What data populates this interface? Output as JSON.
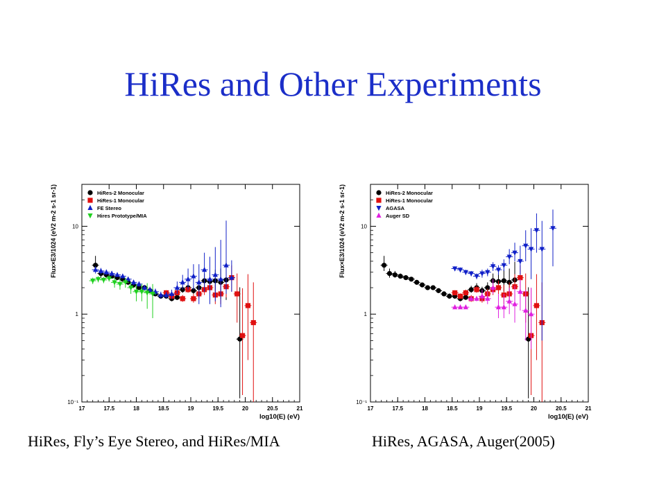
{
  "slide": {
    "title": "HiRes and Other Experiments",
    "caption_left": "HiRes, Fly’s Eye Stereo, and HiRes/MIA",
    "caption_right": "HiRes, AGASA, Auger(2005)"
  },
  "colors": {
    "title": "#1b2ec8",
    "hires2": "#000000",
    "hires1": "#e01010",
    "fe_stereo": "#1020c8",
    "mia": "#20d020",
    "agasa": "#1020c8",
    "auger": "#e020e0"
  },
  "chart_data": [
    {
      "type": "scatter",
      "title": "",
      "xlabel": "log10(E) (eV)",
      "ylabel": "Flux×E3/1024 (eV2 m-2 s-1 sr-1)",
      "x_ticks": [
        "17",
        "17.5",
        "18",
        "18.5",
        "19",
        "19.5",
        "20",
        "20.5",
        "21"
      ],
      "xlim": [
        17,
        21
      ],
      "ylim": [
        0.1,
        30
      ],
      "y_scale": "log",
      "y_ticks": [
        "10⁻¹",
        "1",
        "10"
      ],
      "legend_position": "top-left",
      "series": [
        {
          "name": "HiRes-2 Monocular",
          "marker": "circle",
          "color": "#000000",
          "x": [
            17.25,
            17.35,
            17.45,
            17.55,
            17.65,
            17.75,
            17.85,
            17.95,
            18.05,
            18.15,
            18.25,
            18.35,
            18.45,
            18.55,
            18.65,
            18.75,
            18.85,
            18.95,
            19.05,
            19.15,
            19.25,
            19.35,
            19.45,
            19.55,
            19.65,
            19.9
          ],
          "y": [
            3.6,
            2.9,
            2.8,
            2.7,
            2.6,
            2.5,
            2.3,
            2.15,
            2.0,
            2.0,
            1.85,
            1.7,
            1.6,
            1.6,
            1.5,
            1.55,
            1.9,
            2.0,
            1.85,
            2.0,
            2.4,
            2.35,
            2.4,
            2.3,
            2.45,
            0.52
          ],
          "err_lo": [
            0.5,
            0.3,
            0.2,
            0.15,
            0.12,
            0.1,
            0.1,
            0.1,
            0.1,
            0.1,
            0.1,
            0.1,
            0.1,
            0.1,
            0.1,
            0.1,
            0.15,
            0.2,
            0.15,
            0.25,
            0.4,
            0.5,
            0.6,
            0.8,
            1.0,
            0.41
          ],
          "err_hi": [
            1.0,
            0.4,
            0.3,
            0.2,
            0.15,
            0.12,
            0.12,
            0.12,
            0.12,
            0.12,
            0.12,
            0.12,
            0.12,
            0.12,
            0.12,
            0.12,
            0.2,
            0.25,
            0.2,
            0.3,
            0.5,
            0.6,
            0.8,
            1.0,
            1.5,
            1.5
          ]
        },
        {
          "name": "HiRes-1 Monocular",
          "marker": "square",
          "color": "#e01010",
          "x": [
            18.55,
            18.65,
            18.75,
            18.85,
            18.95,
            19.05,
            19.15,
            19.25,
            19.35,
            19.45,
            19.55,
            19.65,
            19.75,
            19.85,
            19.95,
            20.05,
            20.15
          ],
          "y": [
            1.75,
            1.6,
            1.75,
            1.5,
            1.9,
            1.5,
            1.7,
            1.9,
            2.0,
            1.65,
            1.7,
            2.05,
            2.6,
            1.7,
            0.57,
            1.25,
            0.8
          ],
          "err_lo": [
            0.1,
            0.1,
            0.12,
            0.12,
            0.15,
            0.15,
            0.2,
            0.25,
            0.3,
            0.35,
            0.4,
            0.5,
            0.8,
            0.9,
            0.45,
            0.95,
            0.72
          ],
          "err_hi": [
            0.12,
            0.12,
            0.15,
            0.15,
            0.2,
            0.2,
            0.25,
            0.3,
            0.4,
            0.5,
            0.6,
            0.8,
            1.0,
            1.2,
            1.4,
            1.6,
            1.5
          ]
        },
        {
          "name": "FE Stereo",
          "marker": "triangle-up",
          "color": "#1020c8",
          "x": [
            17.25,
            17.35,
            17.45,
            17.55,
            17.65,
            17.75,
            17.85,
            17.95,
            18.05,
            18.15,
            18.25,
            18.35,
            18.45,
            18.55,
            18.65,
            18.75,
            18.85,
            18.95,
            19.05,
            19.15,
            19.25,
            19.35,
            19.45,
            19.55,
            19.65,
            19.75
          ],
          "y": [
            3.2,
            3.1,
            3.0,
            2.9,
            2.8,
            2.7,
            2.5,
            2.3,
            2.2,
            2.0,
            1.9,
            1.8,
            1.65,
            1.65,
            1.7,
            2.0,
            2.3,
            2.5,
            2.7,
            2.3,
            3.2,
            2.5,
            2.8,
            2.5,
            3.6,
            2.6
          ],
          "err_lo": [
            0.3,
            0.25,
            0.2,
            0.2,
            0.15,
            0.15,
            0.15,
            0.15,
            0.15,
            0.15,
            0.15,
            0.15,
            0.15,
            0.15,
            0.2,
            0.3,
            0.4,
            0.6,
            0.8,
            1.0,
            1.4,
            1.2,
            1.4,
            1.3,
            1.9,
            0.8
          ],
          "err_hi": [
            0.3,
            0.25,
            0.2,
            0.2,
            0.15,
            0.15,
            0.15,
            0.15,
            0.15,
            0.15,
            0.15,
            0.15,
            0.15,
            0.15,
            0.2,
            0.35,
            0.5,
            0.8,
            1.0,
            1.4,
            1.8,
            2.0,
            3.0,
            4.5,
            8.0,
            1.5
          ]
        },
        {
          "name": "Hires Prototype/MIA",
          "marker": "triangle-down",
          "color": "#20d020",
          "x": [
            17.2,
            17.3,
            17.4,
            17.5,
            17.6,
            17.7,
            17.8,
            17.9,
            18.0,
            18.1,
            18.2,
            18.3
          ],
          "y": [
            2.4,
            2.5,
            2.45,
            2.55,
            2.3,
            2.2,
            2.3,
            2.0,
            1.8,
            1.8,
            1.75,
            1.7
          ],
          "err_lo": [
            0.2,
            0.2,
            0.2,
            0.2,
            0.3,
            0.3,
            0.3,
            0.3,
            0.4,
            0.4,
            0.6,
            0.8
          ],
          "err_hi": [
            0.2,
            0.2,
            0.2,
            0.2,
            0.3,
            0.3,
            0.3,
            0.3,
            0.4,
            0.4,
            0.5,
            0.5
          ]
        }
      ]
    },
    {
      "type": "scatter",
      "title": "",
      "xlabel": "log10(E) (eV)",
      "ylabel": "Flux×E3/1024 (eV2 m-2 s-1 sr-1)",
      "x_ticks": [
        "17",
        "17.5",
        "18",
        "18.5",
        "19",
        "19.5",
        "20",
        "20.5",
        "21"
      ],
      "xlim": [
        17,
        21
      ],
      "ylim": [
        0.1,
        30
      ],
      "y_scale": "log",
      "y_ticks": [
        "10⁻¹",
        "1",
        "10"
      ],
      "legend_position": "top-left",
      "series": [
        {
          "name": "HiRes-2 Monocular",
          "marker": "circle",
          "color": "#000000",
          "x": [
            17.25,
            17.35,
            17.45,
            17.55,
            17.65,
            17.75,
            17.85,
            17.95,
            18.05,
            18.15,
            18.25,
            18.35,
            18.45,
            18.55,
            18.65,
            18.75,
            18.85,
            18.95,
            19.05,
            19.15,
            19.25,
            19.35,
            19.45,
            19.55,
            19.65,
            19.9
          ],
          "y": [
            3.6,
            2.9,
            2.8,
            2.7,
            2.6,
            2.5,
            2.3,
            2.15,
            2.0,
            2.0,
            1.85,
            1.7,
            1.6,
            1.6,
            1.5,
            1.55,
            1.9,
            2.0,
            1.85,
            2.0,
            2.4,
            2.35,
            2.4,
            2.3,
            2.45,
            0.52
          ],
          "err_lo": [
            0.5,
            0.3,
            0.2,
            0.15,
            0.12,
            0.1,
            0.1,
            0.1,
            0.1,
            0.1,
            0.1,
            0.1,
            0.1,
            0.1,
            0.1,
            0.1,
            0.15,
            0.2,
            0.15,
            0.25,
            0.4,
            0.5,
            0.6,
            0.8,
            1.0,
            0.41
          ],
          "err_hi": [
            1.0,
            0.4,
            0.3,
            0.2,
            0.15,
            0.12,
            0.12,
            0.12,
            0.12,
            0.12,
            0.12,
            0.12,
            0.12,
            0.12,
            0.12,
            0.12,
            0.2,
            0.25,
            0.2,
            0.3,
            0.5,
            0.6,
            0.8,
            1.0,
            1.5,
            1.5
          ]
        },
        {
          "name": "HiRes-1 Monocular",
          "marker": "square",
          "color": "#e01010",
          "x": [
            18.55,
            18.65,
            18.75,
            18.85,
            18.95,
            19.05,
            19.15,
            19.25,
            19.35,
            19.45,
            19.55,
            19.65,
            19.75,
            19.85,
            19.95,
            20.05,
            20.15
          ],
          "y": [
            1.75,
            1.6,
            1.75,
            1.5,
            1.9,
            1.5,
            1.7,
            1.9,
            2.0,
            1.65,
            1.7,
            2.05,
            2.6,
            1.7,
            0.57,
            1.25,
            0.8
          ],
          "err_lo": [
            0.1,
            0.1,
            0.12,
            0.12,
            0.15,
            0.15,
            0.2,
            0.25,
            0.3,
            0.35,
            0.4,
            0.5,
            0.8,
            0.9,
            0.45,
            0.95,
            0.72
          ],
          "err_hi": [
            0.12,
            0.12,
            0.15,
            0.15,
            0.2,
            0.2,
            0.25,
            0.3,
            0.4,
            0.5,
            0.6,
            0.8,
            1.0,
            1.2,
            1.4,
            1.6,
            1.5
          ]
        },
        {
          "name": "AGASA",
          "marker": "triangle-down",
          "color": "#1020c8",
          "x": [
            18.55,
            18.65,
            18.75,
            18.85,
            18.95,
            19.05,
            19.15,
            19.25,
            19.35,
            19.45,
            19.55,
            19.65,
            19.75,
            19.85,
            19.95,
            20.05,
            20.15,
            20.35
          ],
          "y": [
            3.3,
            3.2,
            3.0,
            2.9,
            2.7,
            2.9,
            3.0,
            3.5,
            3.2,
            3.6,
            4.5,
            5.0,
            4.0,
            6.0,
            5.5,
            9.0,
            5.5,
            9.5
          ],
          "err_lo": [
            0.2,
            0.2,
            0.2,
            0.2,
            0.2,
            0.3,
            0.3,
            0.4,
            0.4,
            0.5,
            0.8,
            1.0,
            1.2,
            2.0,
            3.0,
            4.0,
            5.0,
            6.0
          ],
          "err_hi": [
            0.2,
            0.2,
            0.2,
            0.2,
            0.2,
            0.3,
            0.3,
            0.4,
            0.4,
            0.6,
            1.0,
            1.5,
            2.0,
            3.0,
            4.0,
            5.0,
            6.0,
            6.0
          ]
        },
        {
          "name": "Auger SD",
          "marker": "triangle-up",
          "color": "#e020e0",
          "x": [
            18.55,
            18.65,
            18.75,
            18.85,
            18.95,
            19.05,
            19.15,
            19.25,
            19.35,
            19.45,
            19.55,
            19.65,
            19.75,
            19.85,
            19.95
          ],
          "y": [
            1.2,
            1.2,
            1.2,
            1.5,
            1.5,
            1.6,
            1.5,
            2.0,
            1.2,
            1.2,
            1.4,
            1.3,
            1.8,
            1.1,
            1.0
          ],
          "err_lo": [
            0.05,
            0.05,
            0.05,
            0.1,
            0.1,
            0.2,
            0.2,
            0.3,
            0.3,
            0.3,
            0.4,
            0.5,
            0.7,
            0.6,
            0.6
          ],
          "err_hi": [
            0.05,
            0.05,
            0.05,
            0.1,
            0.1,
            0.3,
            0.3,
            0.5,
            0.5,
            0.5,
            0.6,
            0.8,
            0.7,
            0.8,
            1.0
          ]
        }
      ]
    }
  ]
}
